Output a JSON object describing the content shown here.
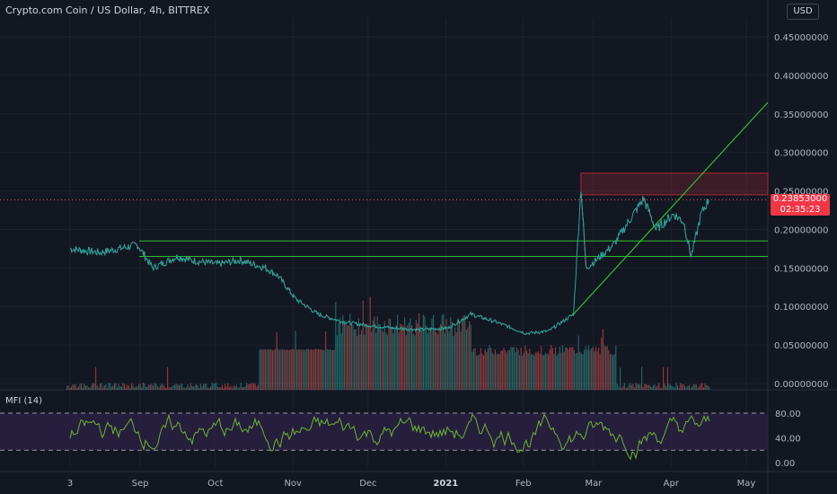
{
  "header": {
    "title": "Crypto.com Coin / US Dollar, 4h, BITTREX",
    "currency": "USD"
  },
  "last_price": {
    "value": "0.23853000",
    "countdown": "02:35:23"
  },
  "indicator": {
    "label": "MFI (14)",
    "ticks": [
      "80.00",
      "40.00",
      "0.00"
    ]
  },
  "colors": {
    "background": "#131722",
    "up": "#26a69a",
    "down": "#ef5350",
    "mfi_line": "#6fb52e",
    "mfi_band": "#2a2144",
    "trendline": "#2dbd2d",
    "badge": "#f23645"
  },
  "chart_data": {
    "type": "line",
    "price_axis": {
      "ticks": [
        "0.45000000",
        "0.40000000",
        "0.35000000",
        "0.30000000",
        "0.25000000",
        "0.20000000",
        "0.15000000",
        "0.10000000",
        "0.05000000",
        "0.00000000"
      ],
      "range": [
        0,
        0.47
      ]
    },
    "time_axis": {
      "labels": [
        "3",
        "Sep",
        "Oct",
        "Nov",
        "Dec",
        "2021",
        "Feb",
        "Mar",
        "Apr",
        "May"
      ],
      "range_months": "Aug 2020 – May 2021"
    },
    "price_series": {
      "name": "",
      "x": [
        "Aug 3",
        "Aug 15",
        "Aug 30",
        "Sep 5",
        "Sep 15",
        "Sep 20",
        "Oct 1",
        "Oct 10",
        "Oct 20",
        "Oct 25",
        "Nov 1",
        "Nov 10",
        "Nov 20",
        "Dec 1",
        "Dec 10",
        "Dec 20",
        "Jan 1",
        "Jan 10",
        "Jan 20",
        "Feb 1",
        "Feb 10",
        "Feb 20",
        "Feb 23",
        "Feb 25",
        "Mar 1",
        "Mar 8",
        "Mar 15",
        "Mar 20",
        "Mar 25",
        "Apr 1",
        "Apr 5",
        "Apr 8",
        "Apr 12",
        "Apr 15"
      ],
      "y": [
        0.175,
        0.17,
        0.18,
        0.15,
        0.165,
        0.16,
        0.155,
        0.16,
        0.15,
        0.14,
        0.11,
        0.09,
        0.08,
        0.075,
        0.072,
        0.07,
        0.072,
        0.09,
        0.08,
        0.065,
        0.068,
        0.09,
        0.255,
        0.15,
        0.16,
        0.18,
        0.215,
        0.24,
        0.2,
        0.22,
        0.21,
        0.165,
        0.22,
        0.2385
      ]
    },
    "horizontal_levels": [
      0.185,
      0.165,
      0.245,
      0.273
    ],
    "mfi_series": {
      "name": "MFI (14)",
      "range": [
        0,
        100
      ],
      "band": [
        20,
        80
      ]
    },
    "grid": true
  }
}
